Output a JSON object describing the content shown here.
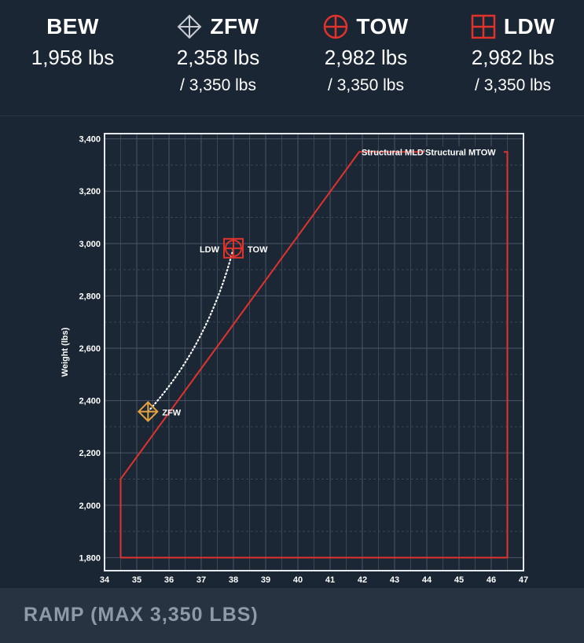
{
  "header": {
    "bew": {
      "label": "BEW",
      "value": "1,958 lbs"
    },
    "zfw": {
      "label": "ZFW",
      "value": "2,358 lbs",
      "max": "/ 3,350 lbs",
      "icon": "diamond-crosshair-icon"
    },
    "tow": {
      "label": "TOW",
      "value": "2,982 lbs",
      "max": "/ 3,350 lbs",
      "icon": "circle-crosshair-icon"
    },
    "ldw": {
      "label": "LDW",
      "value": "2,982 lbs",
      "max": "/ 3,350 lbs",
      "icon": "square-crosshair-icon"
    }
  },
  "footer": {
    "title": "RAMP (MAX 3,350 LBS)"
  },
  "colors": {
    "envelope": "#e0332c",
    "zfw": "#e6a23c",
    "tow": "#e0332c",
    "ldw": "#e0332c",
    "path": "#ffffff",
    "icon_gray": "#c8ccd2"
  },
  "chart_data": {
    "type": "scatter",
    "xlim": [
      34,
      47
    ],
    "ylim": [
      1750,
      3420
    ],
    "xticks": [
      "34",
      "35",
      "36",
      "37",
      "38",
      "39",
      "40",
      "41",
      "42",
      "43",
      "44",
      "45",
      "46",
      "47"
    ],
    "yticks": [
      {
        "value": 1800,
        "label": "1,800"
      },
      {
        "value": 2000,
        "label": "2,000"
      },
      {
        "value": 2200,
        "label": "2,200"
      },
      {
        "value": 2400,
        "label": "2,400"
      },
      {
        "value": 2600,
        "label": "2,600"
      },
      {
        "value": 2800,
        "label": "2,800"
      },
      {
        "value": 3000,
        "label": "3,000"
      },
      {
        "value": 3200,
        "label": "3,200"
      },
      {
        "value": 3400,
        "label": "3,400"
      }
    ],
    "ylabel": "Weight (lbs)",
    "grid": true,
    "envelope": [
      [
        34.5,
        1800
      ],
      [
        34.5,
        2100
      ],
      [
        41.9,
        3350
      ]
    ],
    "envelope_right": [
      [
        46.5,
        3350
      ],
      [
        46.5,
        1800
      ]
    ],
    "envelope_bottom": [
      [
        34.5,
        1800
      ],
      [
        46.5,
        1800
      ]
    ],
    "envelope_labels": [
      {
        "text": "Structural MLDW",
        "x": 42.0,
        "y": 3350
      },
      {
        "text": "Structural MTOW",
        "x": 44.0,
        "y": 3350
      }
    ],
    "points": [
      {
        "name": "ZFW",
        "x": 35.35,
        "y": 2358,
        "label": "ZFW"
      },
      {
        "name": "TOW",
        "x": 38.0,
        "y": 2982,
        "label": "TOW"
      },
      {
        "name": "LDW",
        "x": 38.0,
        "y": 2982,
        "label": "LDW"
      }
    ],
    "path": [
      [
        35.35,
        2358
      ],
      [
        38.0,
        2982
      ]
    ]
  }
}
